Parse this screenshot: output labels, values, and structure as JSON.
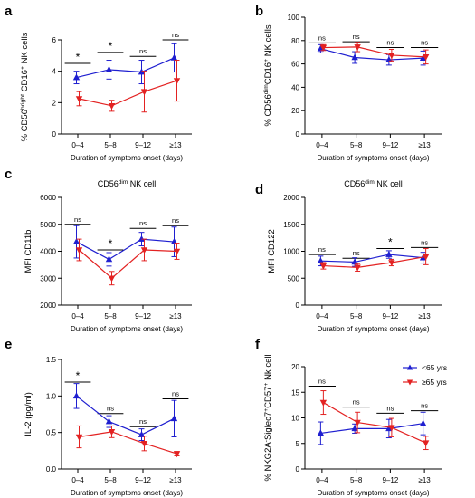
{
  "colors": {
    "under65": "#1f1fd0",
    "over65": "#e32222",
    "axis": "#000000"
  },
  "legend": {
    "placement": "top-right of panel f",
    "items": [
      {
        "label": "<65 yrs",
        "color": "#1f1fd0",
        "marker": "triangle-up"
      },
      {
        "label": "≥65 yrs",
        "color": "#e32222",
        "marker": "triangle-down"
      }
    ]
  },
  "chart_data": [
    {
      "panel": "a",
      "type": "line",
      "title": "",
      "xlabel": "Duration of symptoms onset (days)",
      "ylabel_parts": [
        "% CD56",
        "bright",
        " CD16",
        "+",
        " NK cells"
      ],
      "categories": [
        "0–4",
        "5–8",
        "9–12",
        "≥13"
      ],
      "ylim": [
        0,
        6
      ],
      "yticks": [
        0,
        2,
        4,
        6
      ],
      "ytick_labels": [
        "0",
        "2",
        "4",
        "6"
      ],
      "series": [
        {
          "name": "<65 yrs",
          "color": "#1f1fd0",
          "marker": "triangle-up",
          "values": [
            3.6,
            4.1,
            3.95,
            4.85
          ],
          "err": [
            0.4,
            0.6,
            0.75,
            0.9
          ]
        },
        {
          "name": "≥65 yrs",
          "color": "#e32222",
          "marker": "triangle-down",
          "values": [
            2.25,
            1.8,
            2.7,
            3.4
          ],
          "err": [
            0.45,
            0.35,
            1.3,
            1.3
          ]
        }
      ],
      "significance": [
        "*",
        "*",
        "ns",
        "ns"
      ],
      "sig_y": [
        4.5,
        5.2,
        4.95,
        6.0
      ]
    },
    {
      "panel": "b",
      "type": "line",
      "title": "",
      "xlabel": "Duration of symptoms onset (days)",
      "ylabel_parts": [
        "% CD56",
        "dim",
        "CD16",
        "+",
        " NK cells"
      ],
      "categories": [
        "0–4",
        "5–8",
        "9–12",
        "≥13"
      ],
      "ylim": [
        0,
        100
      ],
      "yticks": [
        0,
        20,
        40,
        60,
        80,
        100
      ],
      "ytick_labels": [
        "0",
        "20",
        "40",
        "60",
        "80",
        "100"
      ],
      "series": [
        {
          "name": "<65 yrs",
          "color": "#1f1fd0",
          "marker": "triangle-up",
          "values": [
            73,
            65.5,
            63.5,
            65
          ],
          "err": [
            3.5,
            5,
            4.5,
            6
          ]
        },
        {
          "name": "≥65 yrs",
          "color": "#e32222",
          "marker": "triangle-down",
          "values": [
            74,
            74.5,
            67.5,
            66
          ],
          "err": [
            2.5,
            4,
            5,
            6
          ]
        }
      ],
      "significance": [
        "ns",
        "ns",
        "ns",
        "ns"
      ],
      "sig_y": [
        78,
        79,
        74,
        74
      ]
    },
    {
      "panel": "c",
      "type": "line",
      "title_parts": [
        "CD56",
        "dim",
        " NK cell"
      ],
      "xlabel": "Duration of symptoms onset (days)",
      "ylabel_parts": [
        "MFI CD11b"
      ],
      "categories": [
        "0–4",
        "5–8",
        "9–12",
        "≥13"
      ],
      "ylim": [
        2000,
        6000
      ],
      "yticks": [
        2000,
        3000,
        4000,
        5000,
        6000
      ],
      "ytick_labels": [
        "2000",
        "3000",
        "4000",
        "5000",
        "6000"
      ],
      "series": [
        {
          "name": "<65 yrs",
          "color": "#1f1fd0",
          "marker": "triangle-up",
          "values": [
            4350,
            3700,
            4450,
            4350
          ],
          "err": [
            600,
            250,
            250,
            550
          ]
        },
        {
          "name": "≥65 yrs",
          "color": "#e32222",
          "marker": "triangle-down",
          "values": [
            4050,
            3000,
            4050,
            4000
          ],
          "err": [
            400,
            250,
            400,
            300
          ]
        }
      ],
      "significance": [
        "ns",
        "*",
        "ns",
        "ns"
      ],
      "sig_y": [
        5000,
        4050,
        4850,
        4950
      ]
    },
    {
      "panel": "d",
      "type": "line",
      "title_parts": [
        "CD56",
        "dim",
        " NK cell"
      ],
      "xlabel": "Duration of symptoms onset (days)",
      "ylabel_parts": [
        "MFI CD122"
      ],
      "categories": [
        "0–4",
        "5–8",
        "9–12",
        "≥13"
      ],
      "ylim": [
        0,
        2000
      ],
      "yticks": [
        0,
        500,
        1000,
        1500,
        2000
      ],
      "ytick_labels": [
        "0",
        "500",
        "1000",
        "1500",
        "2000"
      ],
      "series": [
        {
          "name": "<65 yrs",
          "color": "#1f1fd0",
          "marker": "triangle-up",
          "values": [
            820,
            800,
            940,
            880
          ],
          "err": [
            90,
            80,
            70,
            100
          ]
        },
        {
          "name": "≥65 yrs",
          "color": "#e32222",
          "marker": "triangle-down",
          "values": [
            730,
            700,
            790,
            900
          ],
          "err": [
            60,
            70,
            60,
            150
          ]
        }
      ],
      "significance": [
        "ns",
        "ns",
        "*",
        "ns"
      ],
      "sig_y": [
        940,
        870,
        1050,
        1070
      ]
    },
    {
      "panel": "e",
      "type": "line",
      "title": "",
      "xlabel": "Duration of symptoms onset (days)",
      "ylabel_parts": [
        "IL-2 (pg/ml)"
      ],
      "categories": [
        "0–4",
        "5–8",
        "9–12",
        "≥13"
      ],
      "ylim": [
        0,
        1.5
      ],
      "yticks": [
        0,
        0.5,
        1.0,
        1.5
      ],
      "ytick_labels": [
        "0.0",
        "0.5",
        "1.0",
        "1.5"
      ],
      "series": [
        {
          "name": "<65 yrs",
          "color": "#1f1fd0",
          "marker": "triangle-up",
          "values": [
            1.0,
            0.65,
            0.47,
            0.69
          ],
          "err": [
            0.17,
            0.08,
            0.08,
            0.25
          ]
        },
        {
          "name": "≥65 yrs",
          "color": "#e32222",
          "marker": "triangle-down",
          "values": [
            0.44,
            0.51,
            0.35,
            0.21
          ],
          "err": [
            0.15,
            0.08,
            0.1,
            0.03
          ]
        }
      ],
      "significance": [
        "*",
        "ns",
        "ns",
        "ns"
      ],
      "sig_y": [
        1.19,
        0.76,
        0.58,
        0.96
      ]
    },
    {
      "panel": "f",
      "type": "line",
      "title": "",
      "xlabel": "Duration of symptoms onset (days)",
      "ylabel_parts": [
        "% NKG2A",
        "-",
        "Siglec7",
        "+",
        "CD57",
        "+",
        " Nk cell"
      ],
      "categories": [
        "0–4",
        "5–8",
        "9–12",
        "≥13"
      ],
      "ylim": [
        0,
        20
      ],
      "yticks": [
        0,
        5,
        10,
        15,
        20
      ],
      "ytick_labels": [
        "0",
        "5",
        "10",
        "15",
        "20"
      ],
      "series": [
        {
          "name": "<65 yrs",
          "color": "#1f1fd0",
          "marker": "triangle-up",
          "values": [
            7,
            7.9,
            7.9,
            8.9
          ],
          "err": [
            2.2,
            0.9,
            1.8,
            2.2
          ]
        },
        {
          "name": "≥65 yrs",
          "color": "#e32222",
          "marker": "triangle-down",
          "values": [
            13,
            9.1,
            8.1,
            5.1
          ],
          "err": [
            2.3,
            2.0,
            1.8,
            1.3
          ]
        }
      ],
      "significance": [
        "ns",
        "ns",
        "ns",
        "ns"
      ],
      "sig_y": [
        16.2,
        12.1,
        10.9,
        11.4
      ]
    }
  ],
  "panel_letters": [
    "a",
    "b",
    "c",
    "d",
    "e",
    "f"
  ]
}
